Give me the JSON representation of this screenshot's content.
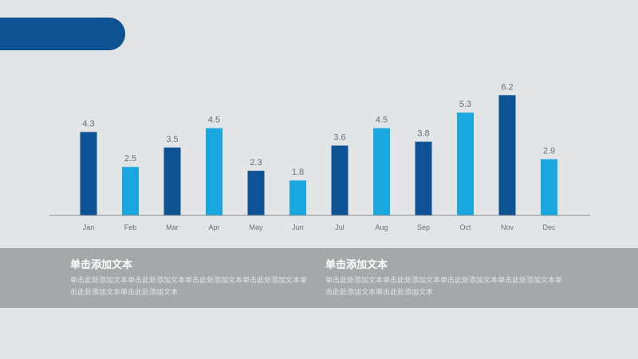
{
  "chart_data": {
    "type": "bar",
    "categories": [
      "Jan",
      "Feb",
      "Mar",
      "Apr",
      "May",
      "Jun",
      "Jul",
      "Aug",
      "Sep",
      "Oct",
      "Nov",
      "Dec"
    ],
    "values": [
      4.3,
      2.5,
      3.5,
      4.5,
      2.3,
      1.8,
      3.6,
      4.5,
      3.8,
      5.3,
      6.2,
      2.9
    ],
    "value_labels": [
      "4.3",
      "2.5",
      "3.5",
      "4.5",
      "2.3",
      "1.8",
      "3.6",
      "4.5",
      "3.8",
      "5.3",
      "6.2",
      "2.9"
    ],
    "title": "",
    "xlabel": "",
    "ylabel": "",
    "ylim": [
      0,
      6.5
    ],
    "grid": false,
    "legend": "none"
  },
  "colors": {
    "dark_bar": "#0d5293",
    "light_bar": "#1aa7e0",
    "axis": "#8a8c8f",
    "labels": "#6b6e72"
  },
  "text_blocks": [
    {
      "title": "单击添加文本",
      "body": "单击此处添加文本单击此处添加文本单击此处添加文本单击此处添加文本单击此处添加文本单击此处添加文本"
    },
    {
      "title": "单击添加文本",
      "body": "单击此处添加文本单击此处添加文本单击此处添加文本单击此处添加文本单击此处添加文本单击此处添加文本"
    }
  ]
}
